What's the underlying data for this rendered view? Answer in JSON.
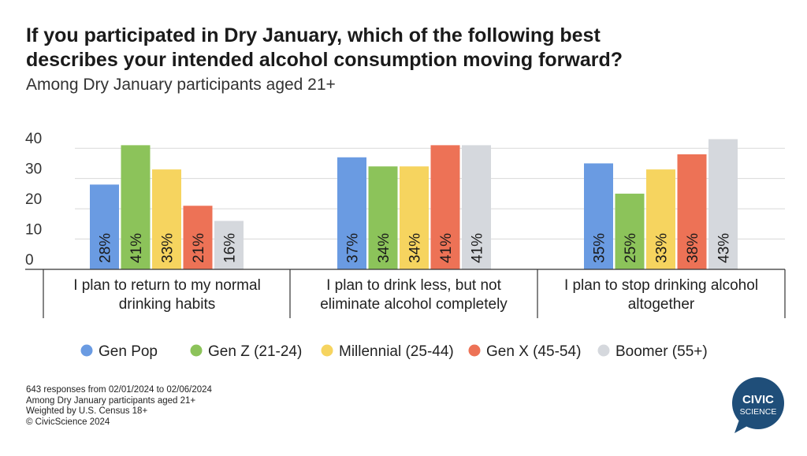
{
  "title_line1": "If you participated in Dry January, which of the following best",
  "title_line2": "describes your intended alcohol consumption moving forward?",
  "subtitle": "Among Dry January participants aged 21+",
  "chart_data": {
    "type": "bar",
    "categories": [
      [
        "I plan to return to my normal",
        "drinking habits"
      ],
      [
        "I plan to drink less, but not",
        "eliminate alcohol completely"
      ],
      [
        "I plan to stop drinking alcohol",
        "altogether"
      ]
    ],
    "series": [
      {
        "name": "Gen Pop",
        "color": "#6a9be2",
        "values": [
          28,
          37,
          35
        ]
      },
      {
        "name": "Gen Z (21-24)",
        "color": "#8cc35a",
        "values": [
          41,
          34,
          25
        ]
      },
      {
        "name": "Millennial (25-44)",
        "color": "#f6d45f",
        "values": [
          33,
          34,
          33
        ]
      },
      {
        "name": "Gen X (45-54)",
        "color": "#ed7256",
        "values": [
          21,
          41,
          38
        ]
      },
      {
        "name": "Boomer (55+)",
        "color": "#d5d8dd",
        "values": [
          16,
          41,
          43
        ]
      }
    ],
    "y_ticks": [
      0,
      10,
      20,
      30,
      40
    ],
    "ylim": [
      0,
      45
    ],
    "value_suffix": "%",
    "grid": true,
    "legend_position": "bottom"
  },
  "footer": {
    "line1": "643 responses from 02/01/2024 to 02/06/2024",
    "line2": "Among Dry January participants aged 21+",
    "line3": "Weighted by U.S. Census 18+",
    "line4": "© CivicScience 2024"
  },
  "logo": {
    "line1": "CIVIC",
    "line2": "SCIENCE",
    "color": "#1f4e79"
  }
}
